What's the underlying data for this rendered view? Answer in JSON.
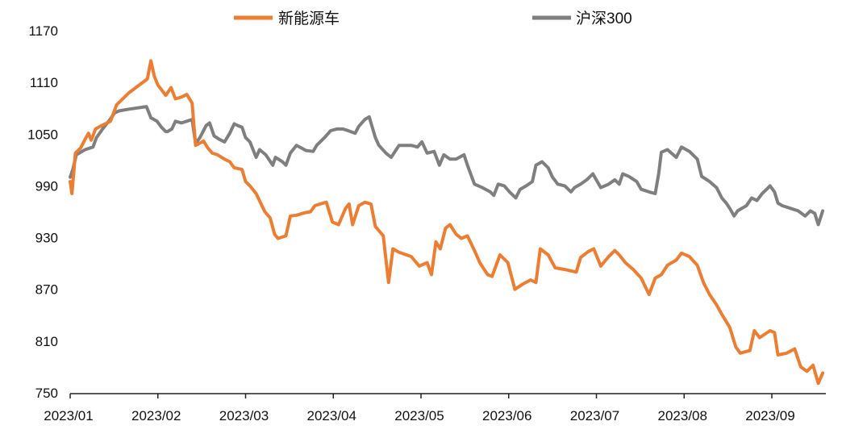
{
  "chart_data": {
    "type": "line",
    "title": "",
    "xlabel": "",
    "ylabel": "",
    "ylim": [
      750,
      1170
    ],
    "yticks": [
      "1170",
      "1110",
      "1050",
      "990",
      "930",
      "870",
      "810",
      "750"
    ],
    "ytick_values": [
      1170,
      1110,
      1050,
      990,
      930,
      870,
      810,
      750
    ],
    "xticks": [
      "2023/01",
      "2023/02",
      "2023/03",
      "2023/04",
      "2023/05",
      "2023/06",
      "2023/07",
      "2023/08",
      "2023/09"
    ],
    "x_unit": "months since 2023/01",
    "xlim": [
      0,
      8.6
    ],
    "grid": false,
    "legend": "top",
    "series": [
      {
        "name": "新能源车",
        "color": "#ed7d31",
        "points": [
          [
            0,
            995
          ],
          [
            0.02,
            981
          ],
          [
            0.06,
            1028
          ],
          [
            0.12,
            1034
          ],
          [
            0.17,
            1044
          ],
          [
            0.21,
            1051
          ],
          [
            0.24,
            1043
          ],
          [
            0.29,
            1056
          ],
          [
            0.34,
            1059
          ],
          [
            0.4,
            1062
          ],
          [
            0.46,
            1065
          ],
          [
            0.53,
            1084
          ],
          [
            0.67,
            1098
          ],
          [
            0.88,
            1114
          ],
          [
            0.92,
            1135
          ],
          [
            0.96,
            1117
          ],
          [
            1.0,
            1107
          ],
          [
            1.09,
            1095
          ],
          [
            1.15,
            1104
          ],
          [
            1.2,
            1091
          ],
          [
            1.27,
            1093
          ],
          [
            1.33,
            1096
          ],
          [
            1.39,
            1086
          ],
          [
            1.43,
            1037
          ],
          [
            1.47,
            1039
          ],
          [
            1.52,
            1042
          ],
          [
            1.57,
            1034
          ],
          [
            1.62,
            1028
          ],
          [
            1.68,
            1026
          ],
          [
            1.76,
            1021
          ],
          [
            1.82,
            1018
          ],
          [
            1.87,
            1011
          ],
          [
            1.96,
            1009
          ],
          [
            2.0,
            995
          ],
          [
            2.05,
            990
          ],
          [
            2.12,
            981
          ],
          [
            2.22,
            960
          ],
          [
            2.28,
            953
          ],
          [
            2.33,
            934
          ],
          [
            2.37,
            929
          ],
          [
            2.46,
            932
          ],
          [
            2.51,
            955
          ],
          [
            2.58,
            956
          ],
          [
            2.68,
            959
          ],
          [
            2.74,
            960
          ],
          [
            2.79,
            967
          ],
          [
            2.85,
            969
          ],
          [
            2.92,
            971
          ],
          [
            2.99,
            948
          ],
          [
            3.06,
            945
          ],
          [
            3.14,
            964
          ],
          [
            3.18,
            969
          ],
          [
            3.22,
            945
          ],
          [
            3.29,
            967
          ],
          [
            3.36,
            971
          ],
          [
            3.43,
            969
          ],
          [
            3.48,
            943
          ],
          [
            3.57,
            932
          ],
          [
            3.63,
            878
          ],
          [
            3.68,
            917
          ],
          [
            3.75,
            913
          ],
          [
            3.89,
            908
          ],
          [
            3.98,
            897
          ],
          [
            4.07,
            901
          ],
          [
            4.12,
            887
          ],
          [
            4.17,
            925
          ],
          [
            4.22,
            917
          ],
          [
            4.28,
            941
          ],
          [
            4.33,
            945
          ],
          [
            4.4,
            934
          ],
          [
            4.46,
            929
          ],
          [
            4.53,
            932
          ],
          [
            4.61,
            915
          ],
          [
            4.67,
            901
          ],
          [
            4.76,
            887
          ],
          [
            4.81,
            885
          ],
          [
            4.9,
            910
          ],
          [
            4.99,
            901
          ],
          [
            5.07,
            870
          ],
          [
            5.16,
            876
          ],
          [
            5.25,
            881
          ],
          [
            5.31,
            878
          ],
          [
            5.36,
            917
          ],
          [
            5.45,
            910
          ],
          [
            5.53,
            895
          ],
          [
            5.64,
            893
          ],
          [
            5.77,
            890
          ],
          [
            5.82,
            907
          ],
          [
            5.91,
            914
          ],
          [
            5.97,
            917
          ],
          [
            6.05,
            897
          ],
          [
            6.14,
            908
          ],
          [
            6.21,
            915
          ],
          [
            6.26,
            910
          ],
          [
            6.33,
            901
          ],
          [
            6.42,
            893
          ],
          [
            6.51,
            883
          ],
          [
            6.6,
            864
          ],
          [
            6.67,
            883
          ],
          [
            6.74,
            887
          ],
          [
            6.81,
            898
          ],
          [
            6.91,
            904
          ],
          [
            6.97,
            912
          ],
          [
            7.06,
            908
          ],
          [
            7.15,
            898
          ],
          [
            7.22,
            878
          ],
          [
            7.29,
            864
          ],
          [
            7.37,
            852
          ],
          [
            7.43,
            841
          ],
          [
            7.52,
            826
          ],
          [
            7.59,
            803
          ],
          [
            7.64,
            796
          ],
          [
            7.75,
            799
          ],
          [
            7.8,
            822
          ],
          [
            7.86,
            814
          ],
          [
            7.98,
            822
          ],
          [
            8.03,
            820
          ],
          [
            8.07,
            794
          ],
          [
            8.17,
            796
          ],
          [
            8.26,
            801
          ],
          [
            8.33,
            780
          ],
          [
            8.4,
            775
          ],
          [
            8.47,
            782
          ],
          [
            8.53,
            761
          ],
          [
            8.58,
            773
          ]
        ]
      },
      {
        "name": "沪深300",
        "color": "#7f7f7f",
        "points": [
          [
            0,
            1000
          ],
          [
            0.03,
            1009
          ],
          [
            0.07,
            1026
          ],
          [
            0.17,
            1032
          ],
          [
            0.26,
            1035
          ],
          [
            0.3,
            1046
          ],
          [
            0.37,
            1056
          ],
          [
            0.44,
            1065
          ],
          [
            0.51,
            1075
          ],
          [
            0.56,
            1077
          ],
          [
            0.67,
            1079
          ],
          [
            0.81,
            1081
          ],
          [
            0.87,
            1082
          ],
          [
            0.92,
            1069
          ],
          [
            0.99,
            1065
          ],
          [
            1.04,
            1058
          ],
          [
            1.09,
            1053
          ],
          [
            1.11,
            1053
          ],
          [
            1.16,
            1056
          ],
          [
            1.2,
            1065
          ],
          [
            1.27,
            1063
          ],
          [
            1.33,
            1065
          ],
          [
            1.39,
            1067
          ],
          [
            1.43,
            1039
          ],
          [
            1.48,
            1046
          ],
          [
            1.55,
            1060
          ],
          [
            1.59,
            1063
          ],
          [
            1.64,
            1048
          ],
          [
            1.7,
            1044
          ],
          [
            1.76,
            1041
          ],
          [
            1.82,
            1051
          ],
          [
            1.87,
            1062
          ],
          [
            1.91,
            1060
          ],
          [
            1.96,
            1058
          ],
          [
            2.0,
            1046
          ],
          [
            2.05,
            1041
          ],
          [
            2.12,
            1023
          ],
          [
            2.16,
            1032
          ],
          [
            2.23,
            1026
          ],
          [
            2.31,
            1014
          ],
          [
            2.34,
            1023
          ],
          [
            2.42,
            1018
          ],
          [
            2.46,
            1014
          ],
          [
            2.51,
            1028
          ],
          [
            2.58,
            1037
          ],
          [
            2.69,
            1031
          ],
          [
            2.77,
            1030
          ],
          [
            2.81,
            1037
          ],
          [
            2.9,
            1046
          ],
          [
            2.97,
            1054
          ],
          [
            3.04,
            1056
          ],
          [
            3.11,
            1056
          ],
          [
            3.17,
            1054
          ],
          [
            3.25,
            1051
          ],
          [
            3.29,
            1059
          ],
          [
            3.36,
            1067
          ],
          [
            3.41,
            1070
          ],
          [
            3.48,
            1046
          ],
          [
            3.52,
            1037
          ],
          [
            3.6,
            1028
          ],
          [
            3.66,
            1023
          ],
          [
            3.75,
            1037
          ],
          [
            3.89,
            1037
          ],
          [
            3.96,
            1035
          ],
          [
            4.01,
            1041
          ],
          [
            4.07,
            1028
          ],
          [
            4.15,
            1030
          ],
          [
            4.21,
            1014
          ],
          [
            4.26,
            1026
          ],
          [
            4.33,
            1021
          ],
          [
            4.4,
            1021
          ],
          [
            4.49,
            1026
          ],
          [
            4.53,
            1014
          ],
          [
            4.61,
            992
          ],
          [
            4.7,
            988
          ],
          [
            4.79,
            983
          ],
          [
            4.83,
            979
          ],
          [
            4.88,
            992
          ],
          [
            4.95,
            990
          ],
          [
            5.01,
            983
          ],
          [
            5.08,
            976
          ],
          [
            5.13,
            986
          ],
          [
            5.2,
            990
          ],
          [
            5.27,
            995
          ],
          [
            5.31,
            1014
          ],
          [
            5.38,
            1018
          ],
          [
            5.45,
            1011
          ],
          [
            5.5,
            1000
          ],
          [
            5.56,
            992
          ],
          [
            5.64,
            990
          ],
          [
            5.71,
            983
          ],
          [
            5.75,
            988
          ],
          [
            5.82,
            992
          ],
          [
            5.89,
            997
          ],
          [
            5.96,
            1004
          ],
          [
            6.05,
            988
          ],
          [
            6.14,
            992
          ],
          [
            6.21,
            997
          ],
          [
            6.26,
            992
          ],
          [
            6.3,
            1004
          ],
          [
            6.37,
            1001
          ],
          [
            6.46,
            995
          ],
          [
            6.51,
            986
          ],
          [
            6.6,
            983
          ],
          [
            6.67,
            981
          ],
          [
            6.71,
            1004
          ],
          [
            6.74,
            1029
          ],
          [
            6.81,
            1032
          ],
          [
            6.91,
            1023
          ],
          [
            6.97,
            1035
          ],
          [
            7.06,
            1030
          ],
          [
            7.15,
            1021
          ],
          [
            7.2,
            1001
          ],
          [
            7.29,
            995
          ],
          [
            7.37,
            988
          ],
          [
            7.43,
            976
          ],
          [
            7.48,
            970
          ],
          [
            7.52,
            964
          ],
          [
            7.57,
            955
          ],
          [
            7.61,
            961
          ],
          [
            7.66,
            964
          ],
          [
            7.71,
            967
          ],
          [
            7.77,
            976
          ],
          [
            7.83,
            973
          ],
          [
            7.89,
            981
          ],
          [
            7.94,
            986
          ],
          [
            7.98,
            990
          ],
          [
            8.03,
            983
          ],
          [
            8.07,
            970
          ],
          [
            8.12,
            967
          ],
          [
            8.21,
            964
          ],
          [
            8.3,
            961
          ],
          [
            8.38,
            955
          ],
          [
            8.44,
            961
          ],
          [
            8.49,
            958
          ],
          [
            8.53,
            945
          ],
          [
            8.58,
            961
          ]
        ]
      }
    ]
  }
}
